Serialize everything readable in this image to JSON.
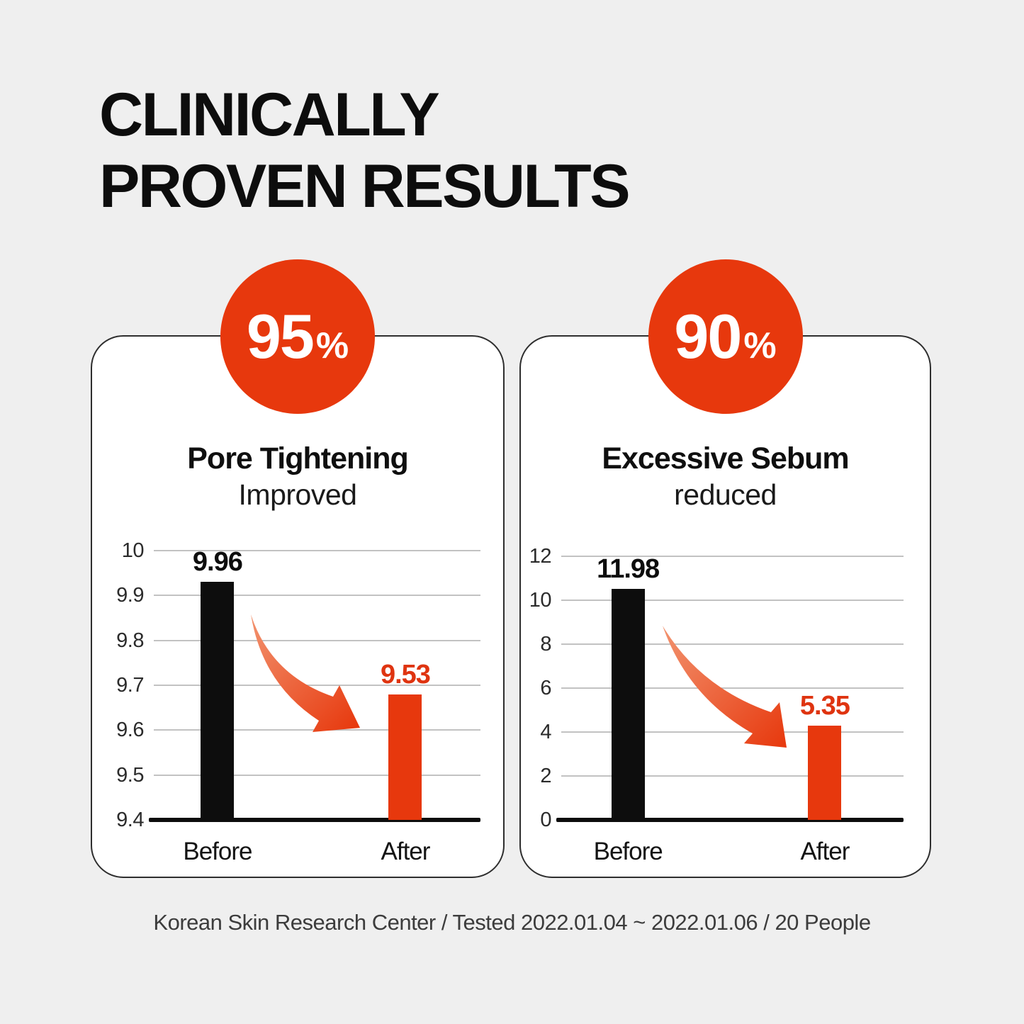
{
  "page": {
    "background_color": "#EFEFEF",
    "title_line1": "CLINICALLY",
    "title_line2": "PROVEN RESULTS",
    "footnote": "Korean Skin Research Center / Tested 2022.01.04 ~ 2022.01.06 / 20 People"
  },
  "colors": {
    "accent": "#E7380D",
    "accent_light": "#F2936F",
    "bar_dark": "#0D0D0D",
    "gridline": "#C2C2C2",
    "axis": "#0D0D0D",
    "card_border": "#2E2E2E",
    "card_bg": "#FFFFFF",
    "tick_text": "#2B2B2B",
    "value_after_text": "#DF3410"
  },
  "chart_data": [
    {
      "type": "bar",
      "badge_value": "95",
      "badge_unit": "%",
      "title": "Pore Tightening",
      "subtitle": "Improved",
      "categories": [
        "Before",
        "After"
      ],
      "values": [
        9.96,
        9.53
      ],
      "value_labels": [
        "9.96",
        "9.53"
      ],
      "series_colors": [
        "#0D0D0D",
        "#E7380D"
      ],
      "value_label_colors": [
        "#0D0D0D",
        "#DF3410"
      ],
      "ylim": [
        9.4,
        10
      ],
      "yticks": [
        "10",
        "9.9",
        "9.8",
        "9.7",
        "9.6",
        "9.5",
        "9.4"
      ],
      "bar_top_display": [
        9.93,
        9.68
      ],
      "grid": true,
      "legend": false,
      "annotation": "decrease-arrow"
    },
    {
      "type": "bar",
      "badge_value": "90",
      "badge_unit": "%",
      "title": "Excessive Sebum",
      "subtitle": "reduced",
      "categories": [
        "Before",
        "After"
      ],
      "values": [
        11.98,
        5.35
      ],
      "value_labels": [
        "11.98",
        "5.35"
      ],
      "series_colors": [
        "#0D0D0D",
        "#E7380D"
      ],
      "value_label_colors": [
        "#0D0D0D",
        "#DF3410"
      ],
      "ylim": [
        0,
        12
      ],
      "yticks": [
        "12",
        "10",
        "8",
        "6",
        "4",
        "2",
        "0"
      ],
      "bar_top_display": [
        10.5,
        4.3
      ],
      "grid": true,
      "legend": false,
      "annotation": "decrease-arrow"
    }
  ]
}
